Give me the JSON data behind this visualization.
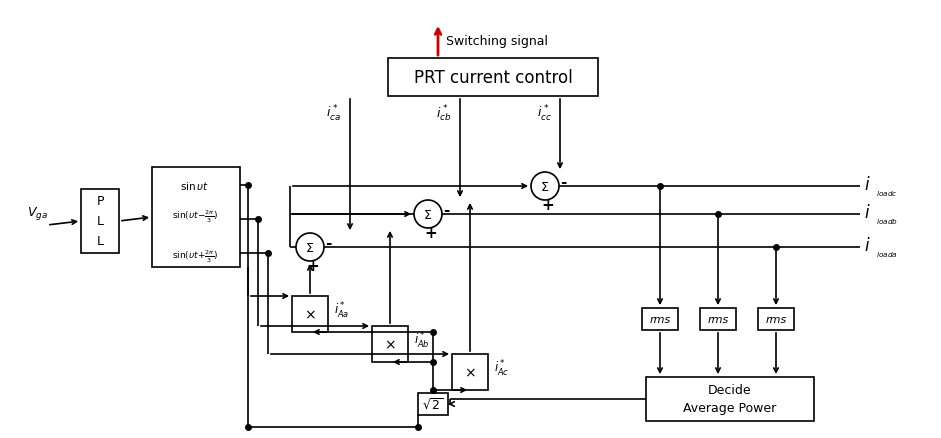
{
  "bg": "#ffffff",
  "lc": "#000000",
  "rc": "#cc0000",
  "fw": 9.41,
  "fh": 4.39,
  "dpi": 100,
  "switching_label": "Switching signal",
  "prt_label": "PRT current control",
  "dap_line1": "Decide",
  "dap_line2": "Average Power"
}
